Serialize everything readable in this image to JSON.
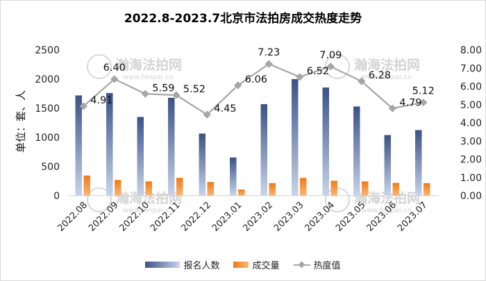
{
  "chart_data": {
    "type": "bar",
    "title": "2022.8-2023.7北京市法拍房成交热度走势",
    "ylabel": "单位：套、人",
    "categories": [
      "2022.08",
      "2022.09",
      "2022.10",
      "2022.11",
      "2022.12",
      "2023.01",
      "2023.02",
      "2023.03",
      "2023.04",
      "2023.05",
      "2023.06",
      "2023.07"
    ],
    "ylim": [
      0,
      2500
    ],
    "yticks": [
      "0",
      "500",
      "1000",
      "1500",
      "2000",
      "2500"
    ],
    "y2lim": [
      0,
      8
    ],
    "y2ticks": [
      "0.00",
      "1.00",
      "2.00",
      "3.00",
      "4.00",
      "5.00",
      "6.00",
      "7.00",
      "8.00"
    ],
    "series": [
      {
        "name": "报名人数",
        "type": "bar",
        "axis": "left",
        "color": "#4a6394",
        "values": [
          1720,
          1760,
          1350,
          1680,
          1065,
          655,
          1570,
          2000,
          1855,
          1530,
          1040,
          1125
        ]
      },
      {
        "name": "成交量",
        "type": "bar",
        "axis": "left",
        "color": "#f08a24",
        "values": [
          345,
          270,
          245,
          305,
          235,
          105,
          215,
          305,
          255,
          245,
          220,
          215
        ]
      },
      {
        "name": "热度值",
        "type": "line",
        "axis": "right",
        "color": "#a6a6a6",
        "values": [
          4.91,
          6.4,
          5.59,
          5.52,
          4.45,
          6.06,
          7.23,
          6.52,
          7.09,
          6.28,
          4.79,
          5.12
        ],
        "labels": [
          "4.91",
          "6.40",
          "5.59",
          "5.52",
          "4.45",
          "6.06",
          "7.23",
          "6.52",
          "7.09",
          "6.28",
          "4.79",
          "5.12"
        ]
      }
    ],
    "grid": false,
    "legend": "bottom",
    "watermark": {
      "cn": "瀚海法拍网",
      "url": "www.fanpai.cn"
    }
  }
}
